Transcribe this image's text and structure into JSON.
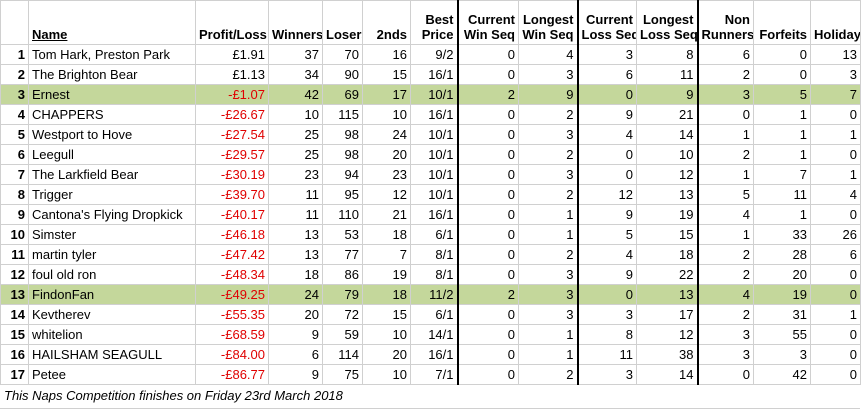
{
  "table": {
    "header": [
      [
        "Name"
      ],
      [
        "Profit/Loss"
      ],
      [
        "Winners"
      ],
      [
        "Losers"
      ],
      [
        "2nds"
      ],
      [
        "Best",
        "Price"
      ],
      [
        "Current",
        "Win Seq"
      ],
      [
        "Longest",
        "Win Seq"
      ],
      [
        "Current",
        "Loss Seq"
      ],
      [
        "Longest",
        "Loss Seq"
      ],
      [
        "Non",
        "Runners"
      ],
      [
        "Forfeits"
      ],
      [
        "Holiday"
      ]
    ],
    "rows": [
      [
        1,
        "Tom Hark, Preston Park",
        "£1.91",
        37,
        70,
        16,
        "9/2",
        0,
        4,
        3,
        8,
        6,
        0,
        13
      ],
      [
        2,
        "The Brighton Bear",
        "£1.13",
        34,
        90,
        15,
        "16/1",
        0,
        3,
        6,
        11,
        2,
        0,
        3
      ],
      [
        3,
        "Ernest",
        "-£1.07",
        42,
        69,
        17,
        "10/1",
        2,
        9,
        0,
        9,
        3,
        5,
        7
      ],
      [
        4,
        "CHAPPERS",
        "-£26.67",
        10,
        115,
        10,
        "16/1",
        0,
        2,
        9,
        21,
        0,
        1,
        0
      ],
      [
        5,
        "Westport to Hove",
        "-£27.54",
        25,
        98,
        24,
        "10/1",
        0,
        3,
        4,
        14,
        1,
        1,
        1
      ],
      [
        6,
        "Leegull",
        "-£29.57",
        25,
        98,
        20,
        "10/1",
        0,
        2,
        0,
        10,
        2,
        1,
        0
      ],
      [
        7,
        "The Larkfield Bear",
        "-£30.19",
        23,
        94,
        23,
        "10/1",
        0,
        3,
        0,
        12,
        1,
        7,
        1
      ],
      [
        8,
        "Trigger",
        "-£39.70",
        11,
        95,
        12,
        "10/1",
        0,
        2,
        12,
        13,
        5,
        11,
        4
      ],
      [
        9,
        "Cantona's Flying Dropkick",
        "-£40.17",
        11,
        110,
        21,
        "16/1",
        0,
        1,
        9,
        19,
        4,
        1,
        0
      ],
      [
        10,
        "Simster",
        "-£46.18",
        13,
        53,
        18,
        "6/1",
        0,
        1,
        5,
        15,
        1,
        33,
        26
      ],
      [
        11,
        "martin tyler",
        "-£47.42",
        13,
        77,
        7,
        "8/1",
        0,
        2,
        4,
        18,
        2,
        28,
        6
      ],
      [
        12,
        "foul old ron",
        "-£48.34",
        18,
        86,
        19,
        "8/1",
        0,
        3,
        9,
        22,
        2,
        20,
        0
      ],
      [
        13,
        "FindonFan",
        "-£49.25",
        24,
        79,
        18,
        "11/2",
        2,
        3,
        0,
        13,
        4,
        19,
        0
      ],
      [
        14,
        "Kevtherev",
        "-£55.35",
        20,
        72,
        15,
        "6/1",
        0,
        3,
        3,
        17,
        2,
        31,
        1
      ],
      [
        15,
        "whitelion",
        "-£68.59",
        9,
        59,
        10,
        "14/1",
        0,
        1,
        8,
        12,
        3,
        55,
        0
      ],
      [
        16,
        "HAILSHAM SEAGULL",
        "-£84.00",
        6,
        114,
        20,
        "16/1",
        0,
        1,
        11,
        38,
        3,
        3,
        0
      ],
      [
        17,
        "Petee",
        "-£86.77",
        9,
        75,
        10,
        "7/1",
        0,
        2,
        3,
        14,
        0,
        42,
        0
      ]
    ]
  },
  "footer": "This Naps Competition finishes on Friday 23rd March 2018"
}
